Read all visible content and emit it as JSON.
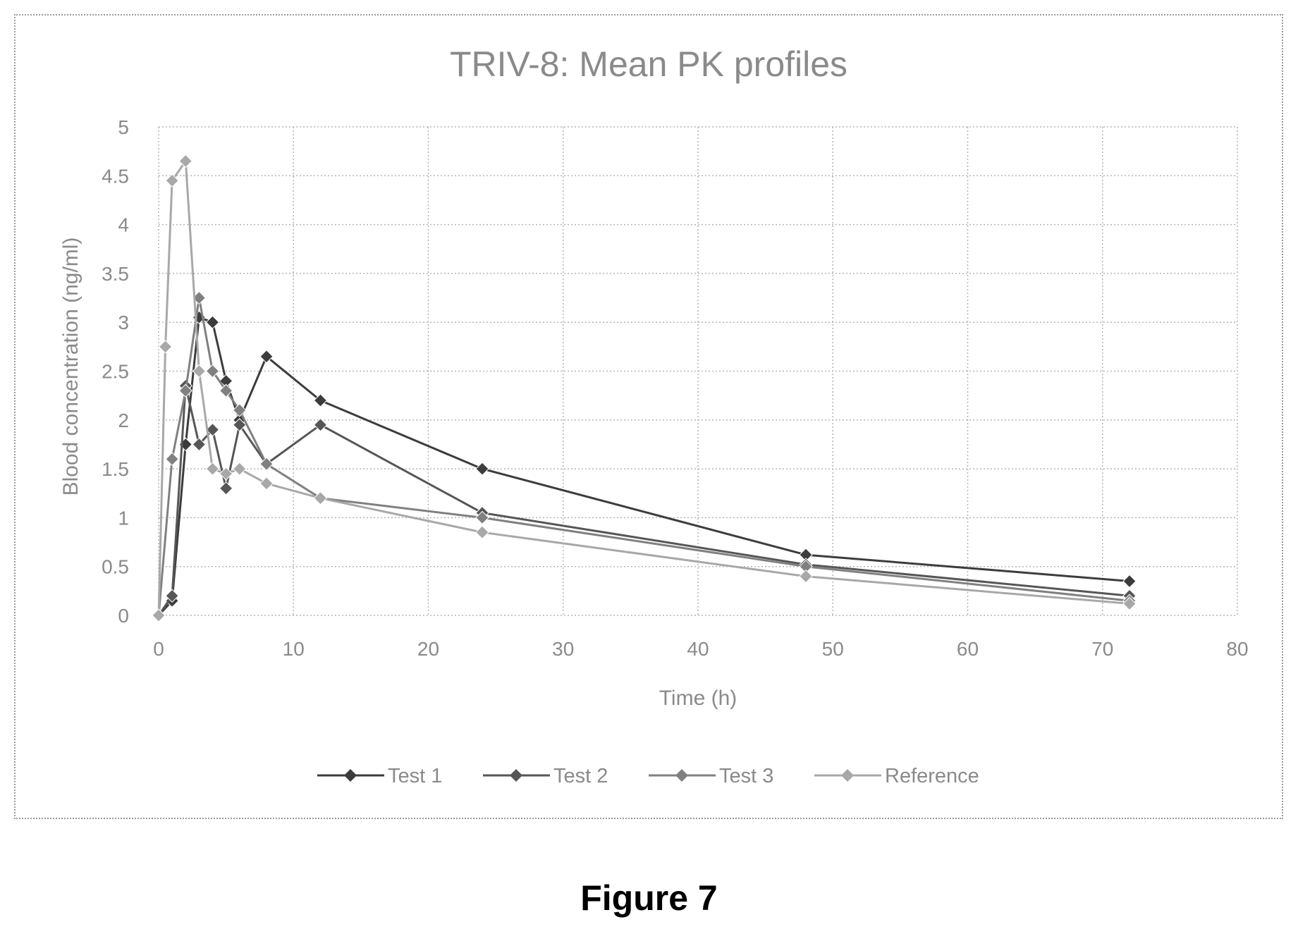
{
  "chart_data": {
    "type": "line",
    "title": "TRIV-8: Mean PK profiles",
    "xlabel": "Time (h)",
    "ylabel": "Blood concentration (ng/ml)",
    "xlim": [
      0,
      80
    ],
    "ylim": [
      0,
      5
    ],
    "xticks": [
      "0",
      "10",
      "20",
      "30",
      "40",
      "50",
      "60",
      "70",
      "80"
    ],
    "yticks": [
      "0",
      "0.5",
      "1",
      "1.5",
      "2",
      "2.5",
      "3",
      "3.5",
      "4",
      "4.5",
      "5"
    ],
    "grid": true,
    "legend_position": "bottom",
    "series": [
      {
        "name": "Test 1",
        "color": "#3c3c3c",
        "x": [
          0,
          1,
          2,
          3,
          4,
          5,
          6,
          8,
          12,
          24,
          48,
          72
        ],
        "y": [
          0,
          0.15,
          1.75,
          3.05,
          3.0,
          2.4,
          2.0,
          2.65,
          2.2,
          1.5,
          0.62,
          0.35
        ]
      },
      {
        "name": "Test 2",
        "color": "#565656",
        "x": [
          0,
          1,
          2,
          3,
          4,
          5,
          6,
          8,
          12,
          24,
          48,
          72
        ],
        "y": [
          0,
          0.2,
          2.35,
          1.75,
          1.9,
          1.3,
          1.95,
          1.55,
          1.95,
          1.05,
          0.52,
          0.2
        ]
      },
      {
        "name": "Test 3",
        "color": "#808080",
        "x": [
          0,
          1,
          2,
          3,
          4,
          5,
          6,
          8,
          12,
          24,
          48,
          72
        ],
        "y": [
          0,
          1.6,
          2.3,
          3.25,
          2.5,
          2.3,
          2.1,
          1.55,
          1.2,
          1.0,
          0.5,
          0.15
        ]
      },
      {
        "name": "Reference",
        "color": "#a8a8a8",
        "x": [
          0,
          0.5,
          1,
          2,
          3,
          4,
          5,
          6,
          8,
          12,
          24,
          48,
          72
        ],
        "y": [
          0,
          2.75,
          4.45,
          4.65,
          2.5,
          1.5,
          1.45,
          1.5,
          1.35,
          1.2,
          0.85,
          0.4,
          0.12
        ]
      }
    ]
  },
  "caption": "Figure 7"
}
